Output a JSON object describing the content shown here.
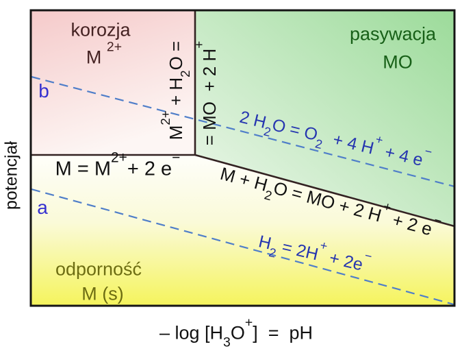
{
  "diagram": {
    "type": "Pourbaix potential-pH diagram",
    "axes": {
      "x_label": "– log [H_{3}O^{+}]  =  pH",
      "y_label": "potencjał"
    },
    "regions": [
      {
        "id": "corrosion",
        "name": "korozja",
        "species": "M ^{2+}",
        "fill": "#f5caca"
      },
      {
        "id": "passivation",
        "name": "pasywacja",
        "species": "MO",
        "fill": "#9cdb9a"
      },
      {
        "id": "immunity",
        "name": "odporność",
        "species": "M (s)",
        "fill": "#f5f45c"
      }
    ],
    "boundaries": {
      "metal_ion": "M = M^{2+}+ 2 e^{−}",
      "ion_oxide_left": "M^{2+} + H_{2}O =",
      "ion_oxide_right": "= MO  + 2 H^{+}",
      "metal_oxide": "M + H_{2}O = MO + 2 H^{+} + 2 e^{−}"
    },
    "water_lines": {
      "oxygen": {
        "label": "b",
        "equation": "2 H_{2}O = O_{2}  + 4 H^{+} + 4 e^{−}",
        "style": "dashed"
      },
      "hydrogen": {
        "label": "a",
        "equation": "H_{2} = 2H^{+} + 2e^{−}",
        "style": "dashed"
      }
    },
    "colors": {
      "corrosion_fill_top": "#f5caca",
      "corrosion_fill_bottom": "#fdf6f4",
      "passivation_fill_corner": "#9cdb9a",
      "passivation_fill_far": "#f0f8ee",
      "immunity_fill_bottom": "#f5f45c",
      "immunity_fill_top": "#fefefa",
      "boundary_line": "#332222",
      "boundary_text": "#111111",
      "frame": "#151515",
      "water_line_dash": "#4f7ec9",
      "water_label": "#3530d0",
      "water_equation": "#2636b0",
      "corrosion_text": "#442222",
      "passivation_text": "#175f17",
      "immunity_text": "#6d6d12"
    }
  }
}
